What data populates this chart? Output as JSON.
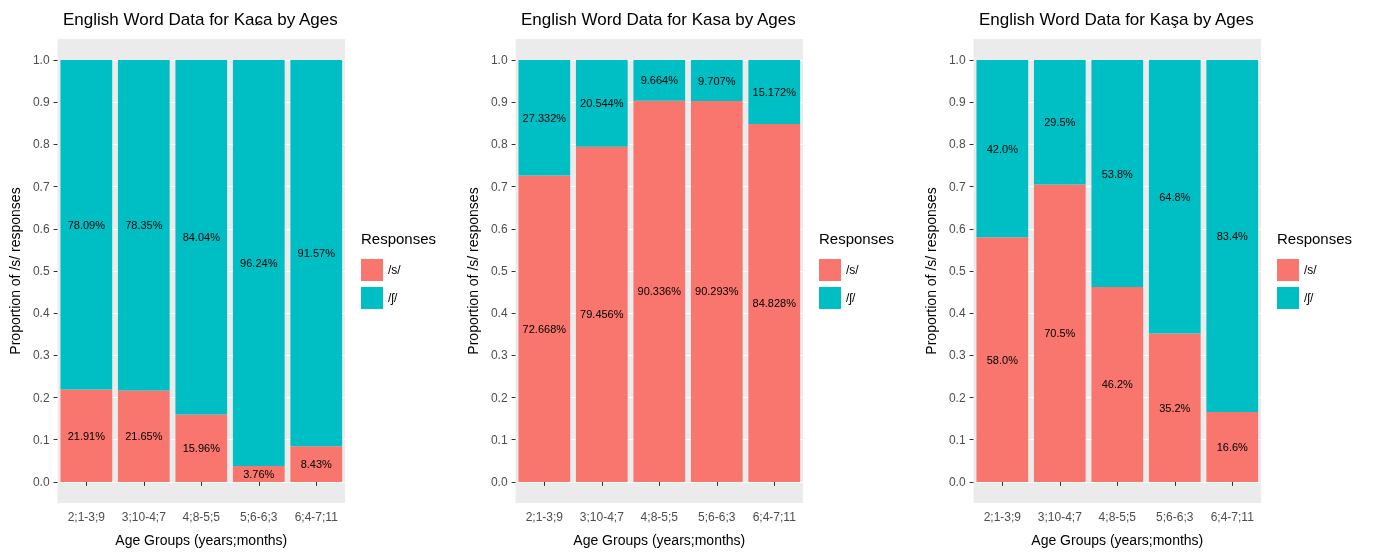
{
  "chart_data": [
    {
      "type": "bar",
      "title": "English Word Data for Kaɕa by Ages",
      "xlabel": "Age Groups (years;months)",
      "ylabel": "Proportion of /s/ responses",
      "legend_title": "Responses",
      "legend": "right",
      "stacked": true,
      "grid": "y",
      "categories": [
        "2;1-3;9",
        "3;10-4;7",
        "4;8-5;5",
        "5;6-6;3",
        "6;4-7;11"
      ],
      "ylim": [
        -0.05,
        1.05
      ],
      "yticks": [
        {
          "value": 0,
          "label": "0.0"
        },
        {
          "value": 0.1,
          "label": "0.1"
        },
        {
          "value": 0.2,
          "label": "0.2"
        },
        {
          "value": 0.3,
          "label": "0.3"
        },
        {
          "value": 0.4,
          "label": "0.4"
        },
        {
          "value": 0.5,
          "label": "0.5"
        },
        {
          "value": 0.6,
          "label": "0.6"
        },
        {
          "value": 0.7,
          "label": "0.7"
        },
        {
          "value": 0.8,
          "label": "0.8"
        },
        {
          "value": 0.9,
          "label": "0.9"
        },
        {
          "value": 1,
          "label": "1.0"
        }
      ],
      "series": [
        {
          "name": "/s/",
          "color": "#f8766d",
          "values": [
            0.2191,
            0.2165,
            0.1596,
            0.0376,
            0.0843
          ],
          "value_labels": [
            "21.91%",
            "21.65%",
            "15.96%",
            "3.76%",
            "8.43%"
          ]
        },
        {
          "name": "/ʃ/",
          "color": "#00bfc4",
          "values": [
            0.7809,
            0.7835,
            0.8404,
            0.9624,
            0.9157
          ],
          "value_labels": [
            "78.09%",
            "78.35%",
            "84.04%",
            "96.24%",
            "91.57%"
          ]
        }
      ]
    },
    {
      "type": "bar",
      "title": "English Word Data for Kasa by Ages",
      "xlabel": "Age Groups (years;months)",
      "ylabel": "Proportion of /s/ responses",
      "legend_title": "Responses",
      "legend": "right",
      "stacked": true,
      "grid": "y",
      "categories": [
        "2;1-3;9",
        "3;10-4;7",
        "4;8-5;5",
        "5;6-6;3",
        "6;4-7;11"
      ],
      "ylim": [
        -0.05,
        1.05
      ],
      "yticks": [
        {
          "value": 0,
          "label": "0.0"
        },
        {
          "value": 0.1,
          "label": "0.1"
        },
        {
          "value": 0.2,
          "label": "0.2"
        },
        {
          "value": 0.3,
          "label": "0.3"
        },
        {
          "value": 0.4,
          "label": "0.4"
        },
        {
          "value": 0.5,
          "label": "0.5"
        },
        {
          "value": 0.6,
          "label": "0.6"
        },
        {
          "value": 0.7,
          "label": "0.7"
        },
        {
          "value": 0.8,
          "label": "0.8"
        },
        {
          "value": 0.9,
          "label": "0.9"
        },
        {
          "value": 1,
          "label": "1.0"
        }
      ],
      "series": [
        {
          "name": "/s/",
          "color": "#f8766d",
          "values": [
            0.72668,
            0.79456,
            0.90336,
            0.90293,
            0.84828
          ],
          "value_labels": [
            "72.668%",
            "79.456%",
            "90.336%",
            "90.293%",
            "84.828%"
          ]
        },
        {
          "name": "/ʃ/",
          "color": "#00bfc4",
          "values": [
            0.27332,
            0.20544,
            0.09664,
            0.09707,
            0.15172
          ],
          "value_labels": [
            "27.332%",
            "20.544%",
            "9.664%",
            "9.707%",
            "15.172%"
          ]
        }
      ]
    },
    {
      "type": "bar",
      "title": "English Word Data for Kaşa by Ages",
      "xlabel": "Age Groups (years;months)",
      "ylabel": "Proportion of /s/ responses",
      "legend_title": "Responses",
      "legend": "right",
      "stacked": true,
      "grid": "y",
      "categories": [
        "2;1-3;9",
        "3;10-4;7",
        "4;8-5;5",
        "5;6-6;3",
        "6;4-7;11"
      ],
      "ylim": [
        -0.05,
        1.05
      ],
      "yticks": [
        {
          "value": 0,
          "label": "0.0"
        },
        {
          "value": 0.1,
          "label": "0.1"
        },
        {
          "value": 0.2,
          "label": "0.2"
        },
        {
          "value": 0.3,
          "label": "0.3"
        },
        {
          "value": 0.4,
          "label": "0.4"
        },
        {
          "value": 0.5,
          "label": "0.5"
        },
        {
          "value": 0.6,
          "label": "0.6"
        },
        {
          "value": 0.7,
          "label": "0.7"
        },
        {
          "value": 0.8,
          "label": "0.8"
        },
        {
          "value": 0.9,
          "label": "0.9"
        },
        {
          "value": 1,
          "label": "1.0"
        }
      ],
      "series": [
        {
          "name": "/s/",
          "color": "#f8766d",
          "values": [
            0.58,
            0.705,
            0.462,
            0.352,
            0.166
          ],
          "value_labels": [
            "58.0%",
            "70.5%",
            "46.2%",
            "35.2%",
            "16.6%"
          ]
        },
        {
          "name": "/ʃ/",
          "color": "#00bfc4",
          "values": [
            0.42,
            0.295,
            0.538,
            0.648,
            0.834
          ],
          "value_labels": [
            "42.0%",
            "29.5%",
            "53.8%",
            "64.8%",
            "83.4%"
          ]
        }
      ]
    }
  ]
}
